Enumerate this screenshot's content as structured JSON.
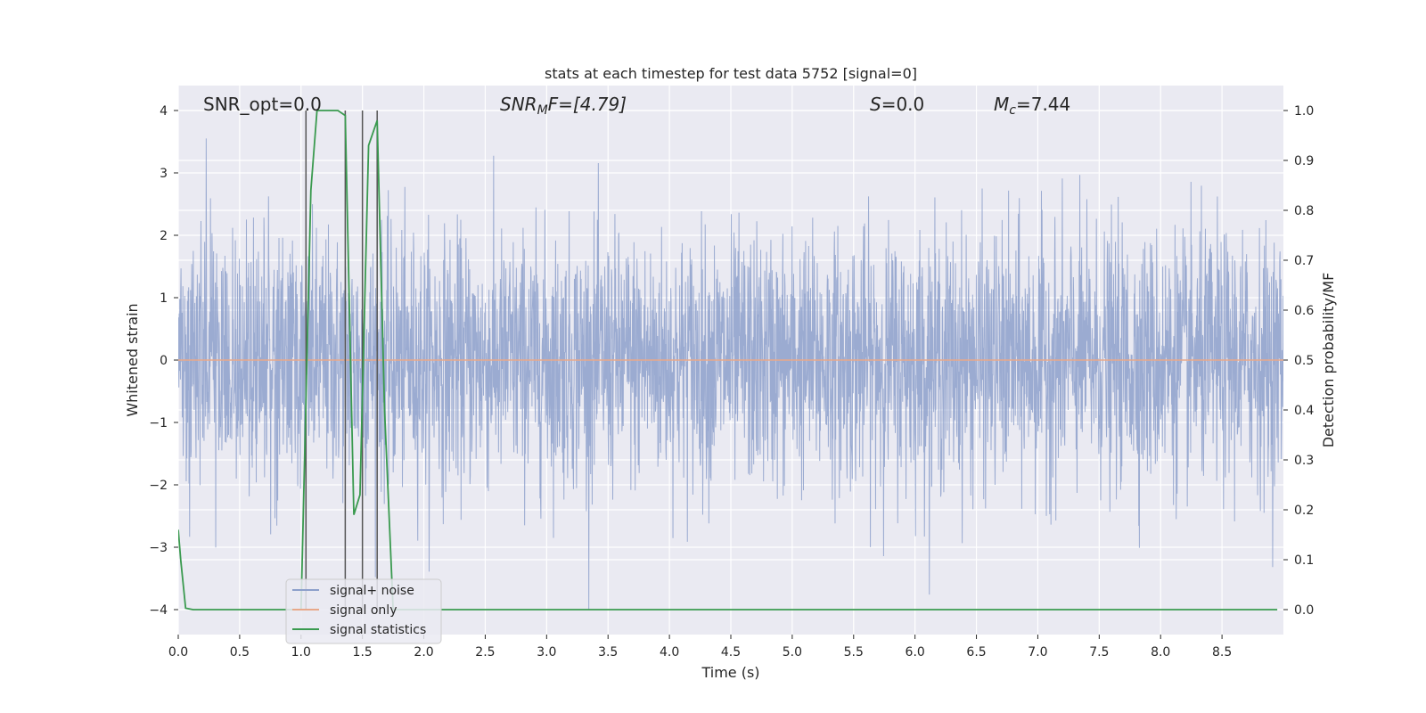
{
  "chart_data": {
    "type": "line",
    "title": "stats at each timestep for test data 5752 [signal=0]",
    "xlabel": "Time (s)",
    "ylabel": "Whitened strain",
    "ylabel_right": "Detection probability/MF",
    "xlim": [
      0.0,
      9.0
    ],
    "ylim": [
      -4.4,
      4.4
    ],
    "ylim_right": [
      -0.05,
      1.05
    ],
    "x_ticks": [
      "0.0",
      "0.5",
      "1.0",
      "1.5",
      "2.0",
      "2.5",
      "3.0",
      "3.5",
      "4.0",
      "4.5",
      "5.0",
      "5.5",
      "6.0",
      "6.5",
      "7.0",
      "7.5",
      "8.0",
      "8.5"
    ],
    "y_ticks": [
      "−4",
      "−3",
      "−2",
      "−1",
      "0",
      "1",
      "2",
      "3",
      "4"
    ],
    "y_ticks_right": [
      "0.0",
      "0.1",
      "0.2",
      "0.3",
      "0.4",
      "0.5",
      "0.6",
      "0.7",
      "0.8",
      "0.9",
      "1.0"
    ],
    "grid": true,
    "annotations": {
      "snr_opt": "SNR_opt=0.0",
      "snr_mf_main": "SNR",
      "snr_mf_sub": "M",
      "snr_mf_rest": "F=[4.79]",
      "s_main": "S",
      "s_rest": "=0.0",
      "mc_main": "M",
      "mc_sub": "c",
      "mc_rest": "=7.44"
    },
    "legend": {
      "position": "lower-left",
      "entries": [
        "signal+ noise",
        "signal only",
        "signal statistics"
      ]
    },
    "series": [
      {
        "name": "signal+ noise",
        "color": "#8da0cb",
        "axis": "left",
        "description_values": {
          "x_range": [
            0.0,
            9.0
          ],
          "amplitude_rms": 1.0,
          "min": -4.0,
          "max": 4.0
        }
      },
      {
        "name": "signal only",
        "color": "#e8a88a",
        "axis": "left",
        "x": [
          0.0,
          9.0
        ],
        "values": [
          0.0,
          0.0
        ]
      },
      {
        "name": "signal statistics",
        "color": "#3a9a4f",
        "axis": "right",
        "x": [
          0.0,
          0.02,
          0.06,
          0.12,
          0.25,
          0.5,
          0.75,
          1.0,
          1.08,
          1.13,
          1.2,
          1.3,
          1.36,
          1.43,
          1.48,
          1.55,
          1.62,
          1.68,
          1.75,
          1.8,
          2.0,
          3.0,
          4.0,
          5.0,
          6.0,
          7.0,
          8.0,
          8.95
        ],
        "values": [
          0.16,
          0.1,
          0.003,
          0.0,
          0.0,
          0.0,
          0.0,
          0.0,
          0.84,
          1.0,
          1.0,
          1.0,
          0.99,
          0.19,
          0.23,
          0.93,
          0.98,
          0.4,
          0.0,
          0.0,
          0.0,
          0.0,
          0.0,
          0.0,
          0.0,
          0.0,
          0.0,
          0.0
        ]
      }
    ],
    "vertical_lines": {
      "color": "#555555",
      "x": [
        1.04,
        1.36,
        1.5,
        1.62
      ],
      "y_range": [
        -4.0,
        4.0
      ]
    }
  }
}
